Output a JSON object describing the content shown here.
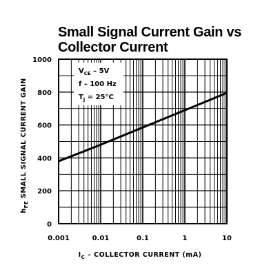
{
  "chart_data": {
    "type": "line",
    "title": [
      "Small Signal Current Gain vs",
      "Collector Current"
    ],
    "xlabel": {
      "main": "I",
      "sub": "C",
      "rest": " – COLLECTOR CURRENT (mA)"
    },
    "ylabel": {
      "main": "h",
      "sub": "FE",
      "rest": "  SMALL SIGNAL CURRENT GAIN"
    },
    "x_scale": "log",
    "xlim": [
      0.001,
      10
    ],
    "ylim": [
      0,
      1000
    ],
    "x_ticks": [
      "0.001",
      "0.01",
      "0.1",
      "1",
      "10"
    ],
    "y_ticks": [
      "0",
      "200",
      "400",
      "600",
      "800",
      "1000"
    ],
    "grid": true,
    "conditions": [
      {
        "main": "V",
        "sub": "CE",
        "rest": " – 5V"
      },
      {
        "main": "f – 100 Hz",
        "sub": "",
        "rest": ""
      },
      {
        "main": "T",
        "sub": "j",
        "rest": " = 25°C"
      }
    ],
    "series": [
      {
        "x": [
          0.001,
          0.01,
          0.1,
          1,
          10
        ],
        "y": [
          380,
          480,
          585,
          690,
          795
        ]
      }
    ]
  }
}
